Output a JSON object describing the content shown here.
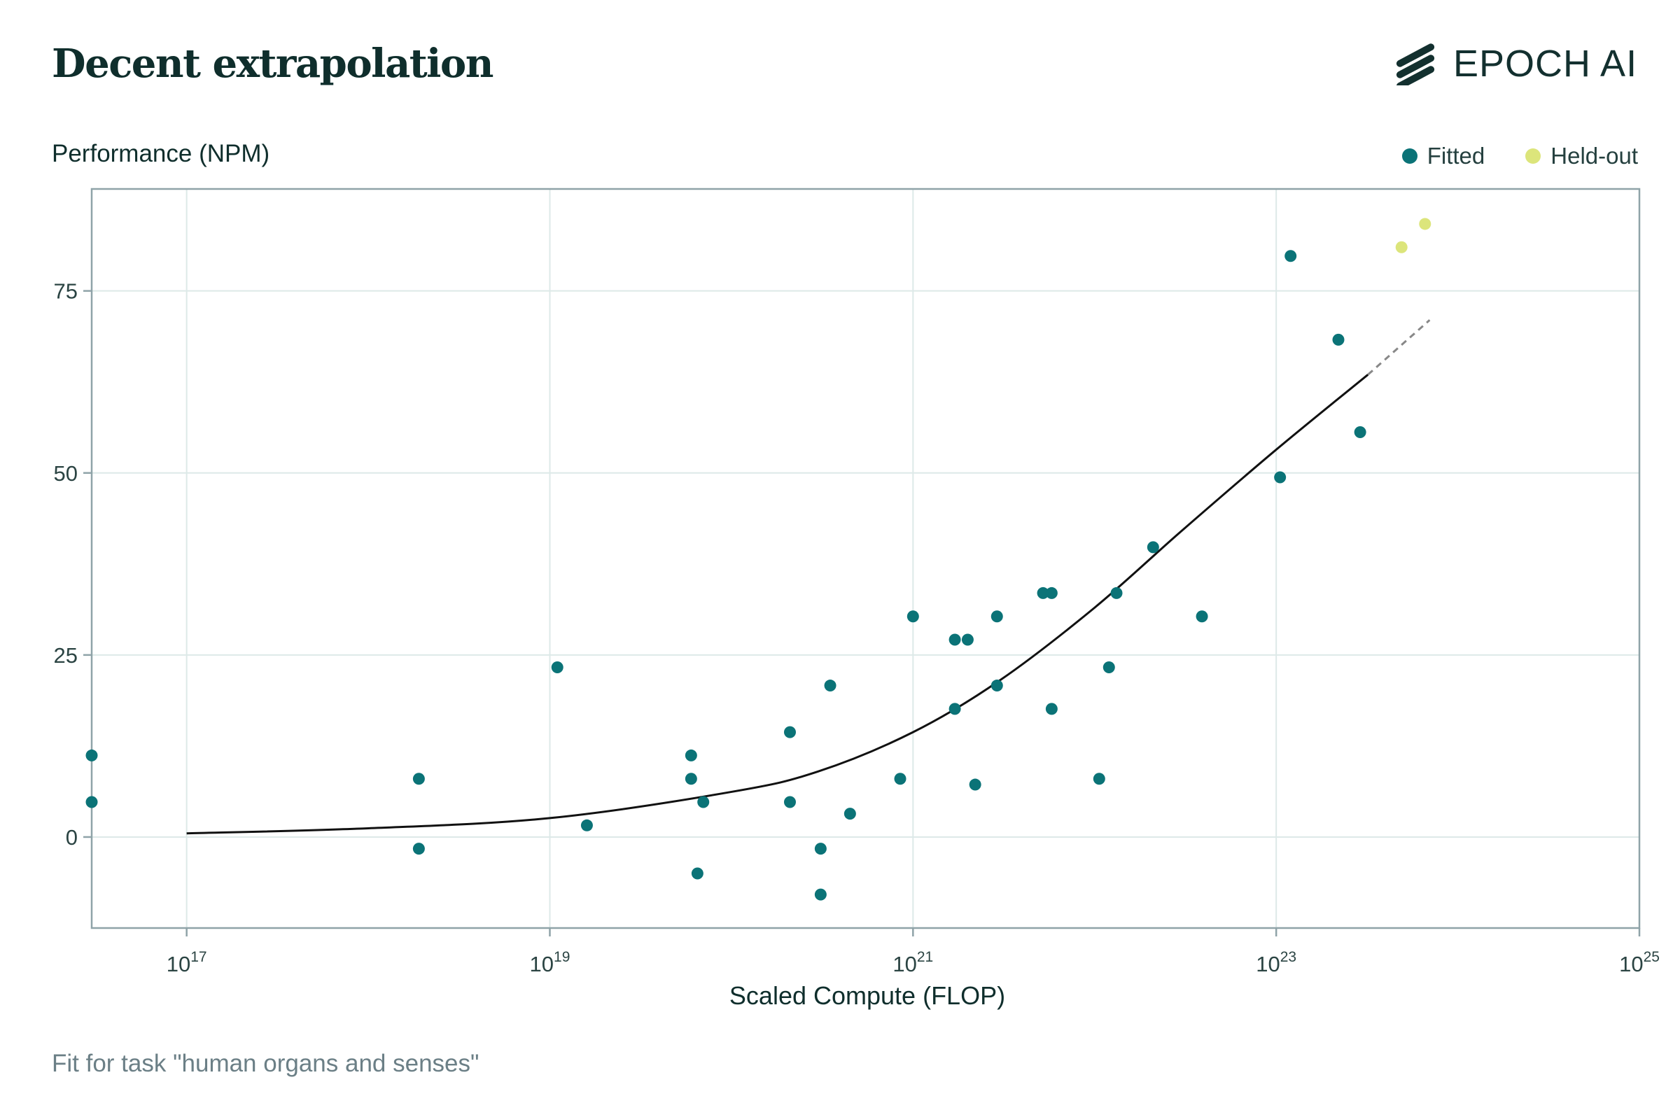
{
  "header": {
    "title": "Decent extrapolation",
    "logo_text": "EPOCH AI"
  },
  "legend": [
    {
      "label": "Fitted",
      "color": "#0b7377"
    },
    {
      "label": "Held-out",
      "color": "#dce57b"
    }
  ],
  "footnote": "Fit for task \"human organs and senses\"",
  "chart_data": {
    "type": "scatter",
    "title": "",
    "ylabel": "Performance (NPM)",
    "xlabel": "Scaled Compute (FLOP)",
    "x_scale": "log",
    "xlim": [
      3e+16,
      1e+25
    ],
    "ylim": [
      -12.5,
      89
    ],
    "x_ticks": [
      {
        "value": 1e+17,
        "base": "10",
        "exp": "17"
      },
      {
        "value": 1e+19,
        "base": "10",
        "exp": "19"
      },
      {
        "value": 1e+21,
        "base": "10",
        "exp": "21"
      },
      {
        "value": 1e+23,
        "base": "10",
        "exp": "23"
      },
      {
        "value": 1e+25,
        "base": "10",
        "exp": "25"
      }
    ],
    "y_ticks": [
      0,
      25,
      50,
      75
    ],
    "grid": true,
    "legend_position": "top-right",
    "series": [
      {
        "name": "Fitted",
        "color": "#0b7377",
        "points": [
          {
            "x": 3e+16,
            "y": 11.2
          },
          {
            "x": 3e+16,
            "y": 4.8
          },
          {
            "x": 1.9e+18,
            "y": 8.0
          },
          {
            "x": 1.9e+18,
            "y": -1.6
          },
          {
            "x": 1.1e+19,
            "y": 23.3
          },
          {
            "x": 1.6e+19,
            "y": 1.6
          },
          {
            "x": 6e+19,
            "y": 11.2
          },
          {
            "x": 6e+19,
            "y": 8.0
          },
          {
            "x": 6.5e+19,
            "y": -5.0
          },
          {
            "x": 7e+19,
            "y": 4.8
          },
          {
            "x": 2.1e+20,
            "y": 14.4
          },
          {
            "x": 2.1e+20,
            "y": 4.8
          },
          {
            "x": 3.1e+20,
            "y": -1.6
          },
          {
            "x": 3.1e+20,
            "y": -7.9
          },
          {
            "x": 3.5e+20,
            "y": 20.8
          },
          {
            "x": 4.5e+20,
            "y": 3.2
          },
          {
            "x": 8.5e+20,
            "y": 8.0
          },
          {
            "x": 1e+21,
            "y": 30.3
          },
          {
            "x": 1.7e+21,
            "y": 27.1
          },
          {
            "x": 1.7e+21,
            "y": 17.6
          },
          {
            "x": 2e+21,
            "y": 27.1
          },
          {
            "x": 2.2e+21,
            "y": 7.2
          },
          {
            "x": 2.9e+21,
            "y": 30.3
          },
          {
            "x": 2.9e+21,
            "y": 20.8
          },
          {
            "x": 5.2e+21,
            "y": 33.5
          },
          {
            "x": 5.8e+21,
            "y": 33.5
          },
          {
            "x": 5.8e+21,
            "y": 17.6
          },
          {
            "x": 1.06e+22,
            "y": 8.0
          },
          {
            "x": 1.2e+22,
            "y": 23.3
          },
          {
            "x": 1.32e+22,
            "y": 33.5
          },
          {
            "x": 2.1e+22,
            "y": 39.8
          },
          {
            "x": 3.9e+22,
            "y": 30.3
          },
          {
            "x": 1.05e+23,
            "y": 49.4
          },
          {
            "x": 1.2e+23,
            "y": 79.8
          },
          {
            "x": 2.2e+23,
            "y": 68.3
          },
          {
            "x": 2.9e+23,
            "y": 55.6
          }
        ]
      },
      {
        "name": "Held-out",
        "color": "#dce57b",
        "points": [
          {
            "x": 4.9e+23,
            "y": 81.0
          },
          {
            "x": 6.6e+23,
            "y": 84.2
          }
        ]
      }
    ],
    "fit_curve": {
      "color": "#111111",
      "points": [
        {
          "x": 1e+17,
          "y": 0.5
        },
        {
          "x": 1e+18,
          "y": 1.2
        },
        {
          "x": 1e+19,
          "y": 2.6
        },
        {
          "x": 1e+20,
          "y": 6.2
        },
        {
          "x": 3e+20,
          "y": 9.0
        },
        {
          "x": 1e+21,
          "y": 14.4
        },
        {
          "x": 3e+21,
          "y": 21.5
        },
        {
          "x": 1e+22,
          "y": 31.5
        },
        {
          "x": 3e+22,
          "y": 42.0
        },
        {
          "x": 1e+23,
          "y": 53.2
        },
        {
          "x": 3.2e+23,
          "y": 63.5
        }
      ]
    },
    "extrapolation": {
      "color": "#888888",
      "points": [
        {
          "x": 3.2e+23,
          "y": 63.5
        },
        {
          "x": 7e+23,
          "y": 71.0
        }
      ]
    }
  }
}
